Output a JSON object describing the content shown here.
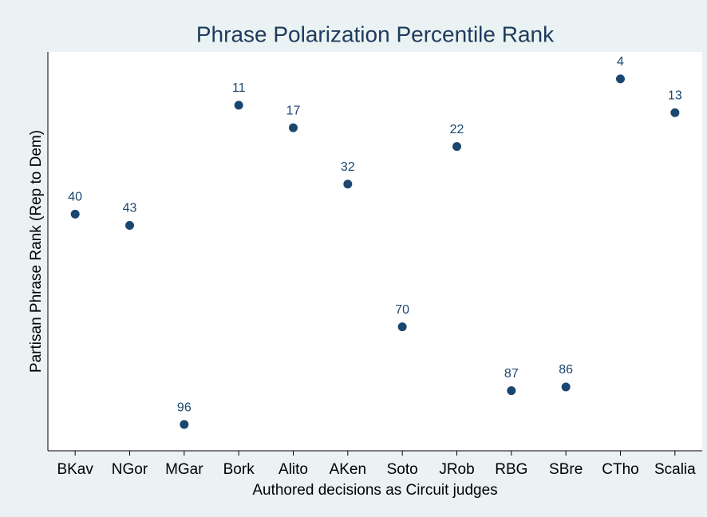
{
  "chart_data": {
    "type": "scatter",
    "title": "Phrase Polarization Percentile Rank",
    "x_label": "Authored decisions as Circuit judges",
    "y_label": "Partisan Phrase Rank (Rep to Dem)",
    "categories": [
      "BKav",
      "NGor",
      "MGar",
      "Bork",
      "Alito",
      "AKen",
      "Soto",
      "JRob",
      "RBG",
      "SBre",
      "CTho",
      "Scalia"
    ],
    "values": [
      40,
      43,
      96,
      11,
      17,
      32,
      70,
      22,
      87,
      86,
      4,
      13
    ],
    "color": "#1a476f",
    "ylim": [
      103,
      -3.2
    ]
  }
}
